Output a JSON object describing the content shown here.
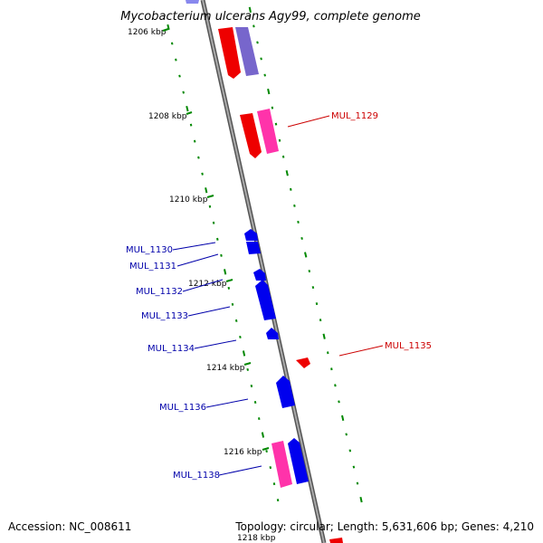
{
  "title": "Mycobacterium ulcerans Agy99, complete genome",
  "footer": {
    "accession": "Accession: NC_008611",
    "summary": "Topology: circular; Length: 5,631,606 bp; Genes: 4,210"
  },
  "colors": {
    "forward_cds": "#ff0000",
    "reverse_cds": "#0000ff",
    "forward_alt": "#ff33aa",
    "reverse_alt": "#7766cc",
    "backbone": "#888888",
    "ticks": "#008800",
    "label_forward": "#cc0000",
    "label_reverse": "#0000aa"
  },
  "ruler": [
    {
      "label": "1206 kbp"
    },
    {
      "label": "1208 kbp"
    },
    {
      "label": "1210 kbp"
    },
    {
      "label": "1212 kbp"
    },
    {
      "label": "1214 kbp"
    },
    {
      "label": "1216 kbp"
    },
    {
      "label": "1218 kbp"
    }
  ],
  "genes": [
    {
      "label": "MUL_1129",
      "strand": "forward"
    },
    {
      "label": "MUL_1130",
      "strand": "reverse"
    },
    {
      "label": "MUL_1131",
      "strand": "reverse"
    },
    {
      "label": "MUL_1132",
      "strand": "reverse"
    },
    {
      "label": "MUL_1133",
      "strand": "reverse"
    },
    {
      "label": "MUL_1134",
      "strand": "reverse"
    },
    {
      "label": "MUL_1135",
      "strand": "forward"
    },
    {
      "label": "MUL_1136",
      "strand": "reverse"
    },
    {
      "label": "MUL_1138",
      "strand": "reverse"
    }
  ]
}
